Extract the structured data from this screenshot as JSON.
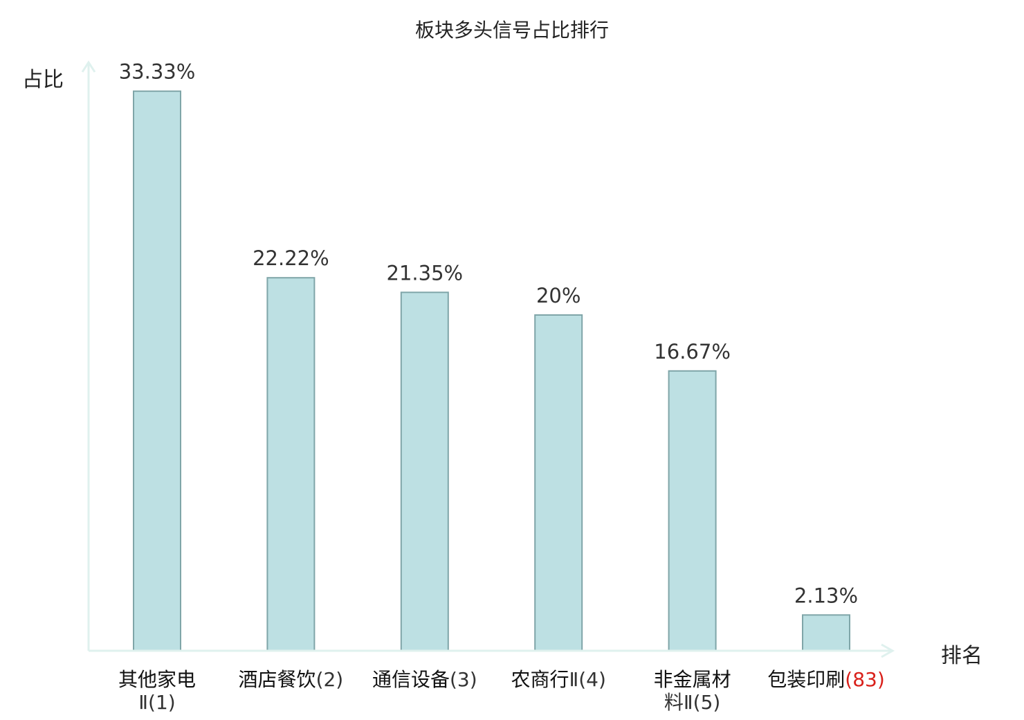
{
  "chart_data": {
    "type": "bar",
    "title": "板块多头信号占比排行",
    "ylabel": "占比",
    "xlabel": "排名",
    "ylim": [
      0,
      35
    ],
    "grid": false,
    "legend": "none",
    "categories": [
      {
        "name": "其他家电",
        "rank": "Ⅱ(1)"
      },
      {
        "name": "酒店餐饮",
        "rank": "(2)"
      },
      {
        "name": "通信设备",
        "rank": "(3)"
      },
      {
        "name": "农商行",
        "rank": "Ⅱ(4)"
      },
      {
        "name": "非金属材",
        "rank": "料Ⅱ(5)"
      },
      {
        "name": "包装印刷",
        "rank": "(83)"
      }
    ],
    "values": [
      33.33,
      22.22,
      21.35,
      20,
      16.67,
      2.13
    ],
    "value_labels": [
      "33.33%",
      "22.22%",
      "21.35%",
      "20%",
      "16.67%",
      "2.13%"
    ],
    "highlight_category_index": 5,
    "colors": {
      "bar_fill": "#bde0e3",
      "bar_stroke": "#7fa5a8",
      "axis": "#dff1ee",
      "highlight_text": "#d9201a",
      "value_text": "#333333"
    }
  }
}
